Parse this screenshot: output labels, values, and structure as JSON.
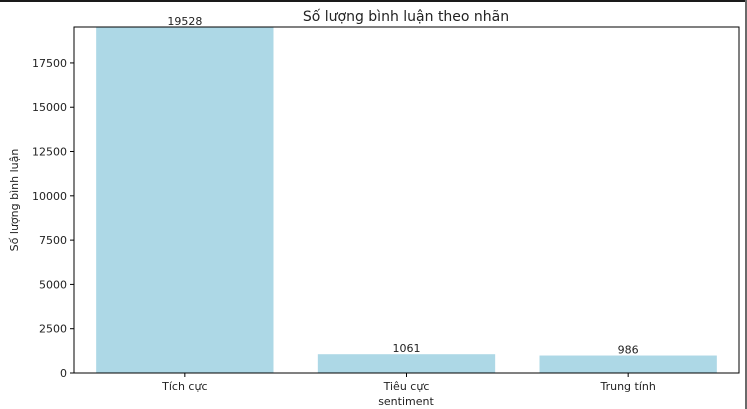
{
  "chart_data": {
    "type": "bar",
    "title": "Số lượng bình luận theo nhãn",
    "xlabel": "sentiment",
    "ylabel": "Số lượng bình luận",
    "categories": [
      "Tích cực",
      "Tiêu cực",
      "Trung tính"
    ],
    "values": [
      19528,
      1061,
      986
    ],
    "data_labels": [
      "19528",
      "1061",
      "986"
    ],
    "ylim": [
      0,
      19528
    ],
    "yticks": [
      0,
      2500,
      5000,
      7500,
      10000,
      12500,
      15000,
      17500
    ],
    "ytick_labels": [
      "0",
      "2500",
      "5000",
      "7500",
      "10000",
      "12500",
      "15000",
      "17500"
    ],
    "bar_color": "#add8e6",
    "grid": false,
    "legend": "none"
  }
}
